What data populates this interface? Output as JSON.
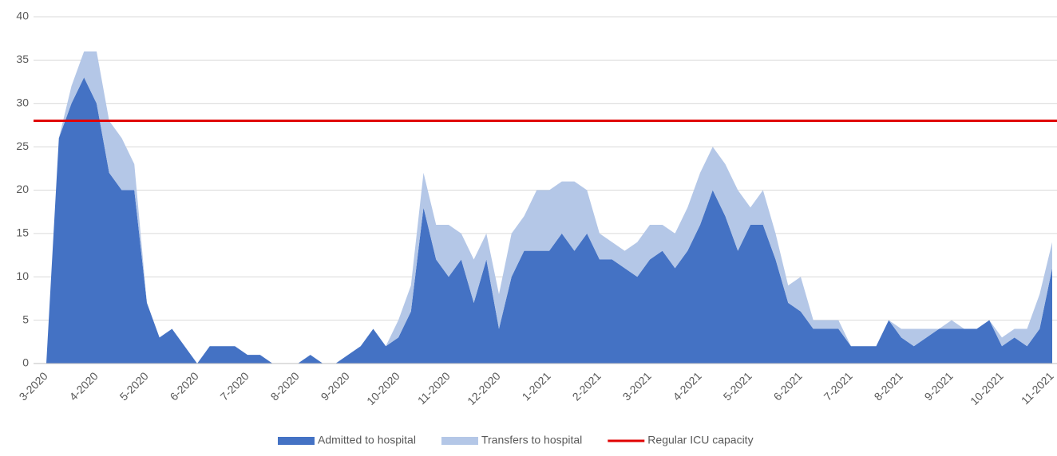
{
  "chart_data": {
    "type": "stacked-area",
    "categories": [
      "3-2020",
      null,
      null,
      null,
      "4-2020",
      null,
      null,
      null,
      "5-2020",
      null,
      null,
      null,
      "6-2020",
      null,
      null,
      null,
      "7-2020",
      null,
      null,
      null,
      "8-2020",
      null,
      null,
      null,
      "9-2020",
      null,
      null,
      null,
      "10-2020",
      null,
      null,
      null,
      "11-2020",
      null,
      null,
      null,
      "12-2020",
      null,
      null,
      null,
      "1-2021",
      null,
      null,
      null,
      "2-2021",
      null,
      null,
      null,
      "3-2021",
      null,
      null,
      null,
      "4-2021",
      null,
      null,
      null,
      "5-2021",
      null,
      null,
      null,
      "6-2021",
      null,
      null,
      null,
      "7-2021",
      null,
      null,
      null,
      "8-2021",
      null,
      null,
      null,
      "9-2021",
      null,
      null,
      null,
      "10-2021",
      null,
      null,
      null,
      "11-2021"
    ],
    "series": [
      {
        "name": "Admitted to hospital",
        "color": "#4472c4",
        "values": [
          0,
          26,
          30,
          33,
          30,
          22,
          20,
          20,
          7,
          3,
          4,
          2,
          0,
          2,
          2,
          2,
          1,
          1,
          0,
          0,
          0,
          1,
          0,
          0,
          1,
          2,
          4,
          2,
          3,
          6,
          18,
          12,
          10,
          12,
          7,
          12,
          4,
          10,
          13,
          13,
          13,
          15,
          13,
          15,
          12,
          12,
          11,
          10,
          12,
          13,
          11,
          13,
          16,
          20,
          17,
          13,
          16,
          16,
          12,
          7,
          6,
          4,
          4,
          4,
          2,
          2,
          2,
          5,
          3,
          2,
          3,
          4,
          4,
          4,
          4,
          5,
          2,
          3,
          2,
          4,
          11
        ]
      },
      {
        "name": "Transfers to hospital",
        "color": "#b4c7e7",
        "values": [
          0,
          0,
          2,
          3,
          6,
          6,
          6,
          3,
          0,
          0,
          0,
          0,
          0,
          0,
          0,
          0,
          0,
          0,
          0,
          0,
          0,
          0,
          0,
          0,
          0,
          0,
          0,
          0,
          2,
          3,
          4,
          4,
          6,
          3,
          5,
          3,
          4,
          5,
          4,
          7,
          7,
          6,
          8,
          5,
          3,
          2,
          2,
          4,
          4,
          3,
          4,
          5,
          6,
          5,
          6,
          7,
          2,
          4,
          3,
          2,
          4,
          1,
          1,
          1,
          0,
          0,
          0,
          0,
          1,
          2,
          1,
          0,
          1,
          0,
          0,
          0,
          1,
          1,
          2,
          4,
          3
        ]
      }
    ],
    "reference_lines": [
      {
        "name": "Regular ICU capacity",
        "value": 28,
        "color": "#e00000"
      }
    ],
    "ylim": [
      0,
      40
    ],
    "yticks": [
      0,
      5,
      10,
      15,
      20,
      25,
      30,
      35,
      40
    ],
    "grid": true
  }
}
